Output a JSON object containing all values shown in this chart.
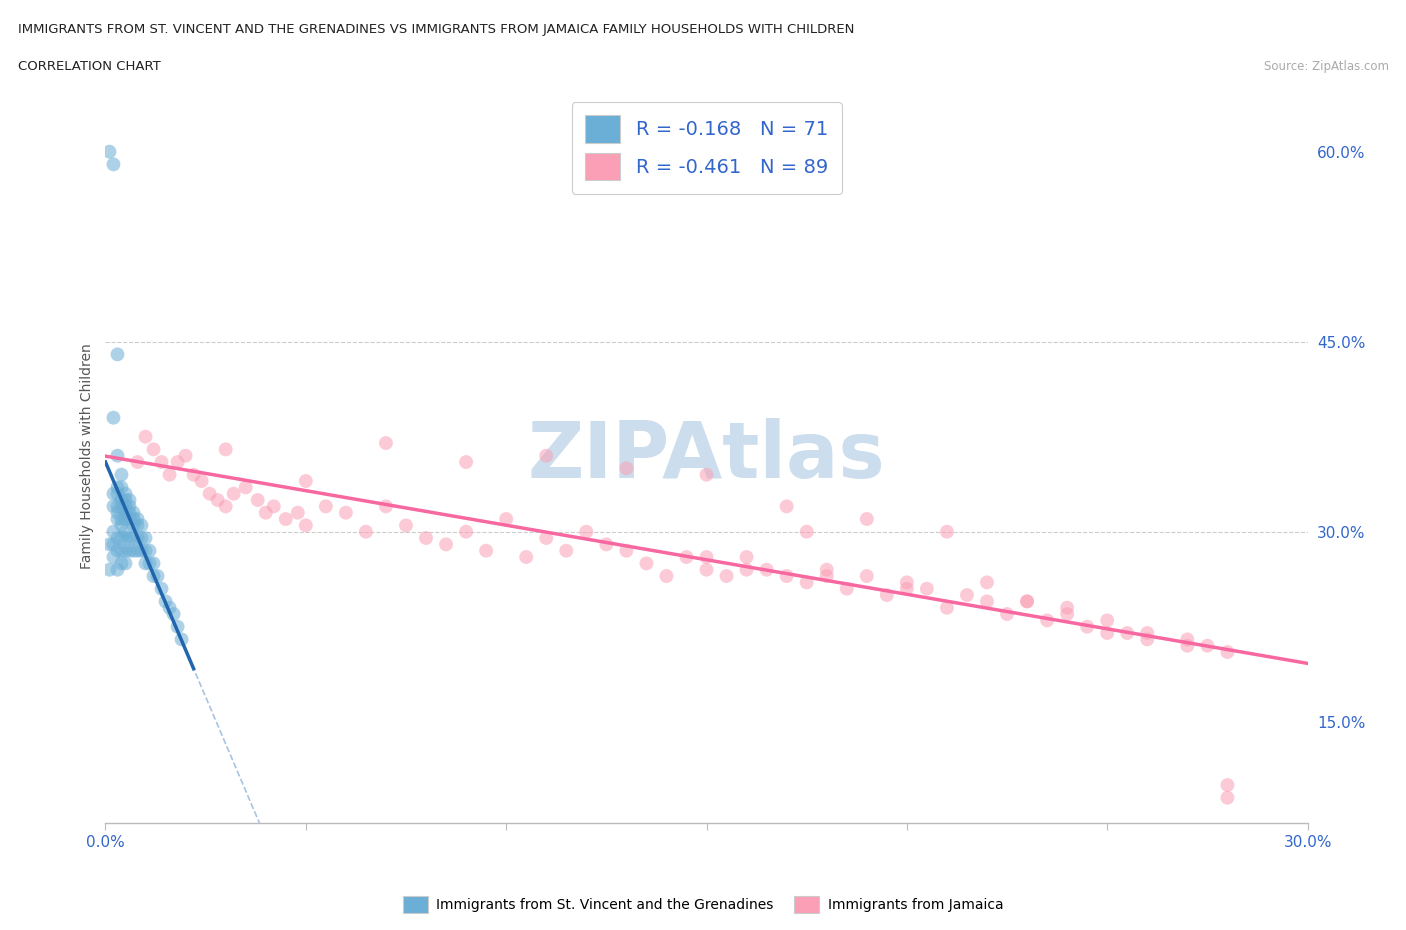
{
  "title_line1": "IMMIGRANTS FROM ST. VINCENT AND THE GRENADINES VS IMMIGRANTS FROM JAMAICA FAMILY HOUSEHOLDS WITH CHILDREN",
  "title_line2": "CORRELATION CHART",
  "source": "Source: ZipAtlas.com",
  "ylabel": "Family Households with Children",
  "xlim": [
    0.0,
    0.3
  ],
  "ylim": [
    0.07,
    0.65
  ],
  "x_ticks": [
    0.0,
    0.05,
    0.1,
    0.15,
    0.2,
    0.25,
    0.3
  ],
  "x_tick_labels": [
    "0.0%",
    "",
    "",
    "",
    "",
    "",
    "30.0%"
  ],
  "y_ticks_right": [
    0.15,
    0.3,
    0.45,
    0.6
  ],
  "y_tick_labels_right": [
    "15.0%",
    "30.0%",
    "45.0%",
    "60.0%"
  ],
  "hlines": [
    0.45,
    0.3
  ],
  "blue_color": "#6baed6",
  "pink_color": "#fa9fb5",
  "blue_line_color": "#2166ac",
  "pink_line_color": "#f768a1",
  "dashed_line_color": "#a8c4e0",
  "watermark_color": "#ccdded",
  "blue_scatter_x": [
    0.001,
    0.001,
    0.001,
    0.002,
    0.002,
    0.002,
    0.002,
    0.002,
    0.002,
    0.002,
    0.003,
    0.003,
    0.003,
    0.003,
    0.003,
    0.003,
    0.003,
    0.003,
    0.003,
    0.003,
    0.004,
    0.004,
    0.004,
    0.004,
    0.004,
    0.004,
    0.004,
    0.004,
    0.004,
    0.005,
    0.005,
    0.005,
    0.005,
    0.005,
    0.005,
    0.005,
    0.005,
    0.005,
    0.006,
    0.006,
    0.006,
    0.006,
    0.006,
    0.006,
    0.007,
    0.007,
    0.007,
    0.007,
    0.007,
    0.008,
    0.008,
    0.008,
    0.008,
    0.009,
    0.009,
    0.009,
    0.01,
    0.01,
    0.01,
    0.011,
    0.011,
    0.012,
    0.012,
    0.013,
    0.014,
    0.015,
    0.016,
    0.017,
    0.018,
    0.019
  ],
  "blue_scatter_y": [
    0.6,
    0.29,
    0.27,
    0.59,
    0.39,
    0.33,
    0.32,
    0.3,
    0.29,
    0.28,
    0.44,
    0.36,
    0.335,
    0.33,
    0.32,
    0.315,
    0.31,
    0.295,
    0.285,
    0.27,
    0.345,
    0.335,
    0.325,
    0.32,
    0.31,
    0.305,
    0.295,
    0.285,
    0.275,
    0.33,
    0.325,
    0.32,
    0.315,
    0.31,
    0.3,
    0.295,
    0.285,
    0.275,
    0.325,
    0.32,
    0.315,
    0.31,
    0.295,
    0.285,
    0.315,
    0.31,
    0.305,
    0.295,
    0.285,
    0.31,
    0.305,
    0.295,
    0.285,
    0.305,
    0.295,
    0.285,
    0.295,
    0.285,
    0.275,
    0.285,
    0.275,
    0.275,
    0.265,
    0.265,
    0.255,
    0.245,
    0.24,
    0.235,
    0.225,
    0.215
  ],
  "pink_scatter_x": [
    0.008,
    0.01,
    0.012,
    0.014,
    0.016,
    0.018,
    0.02,
    0.022,
    0.024,
    0.026,
    0.028,
    0.03,
    0.032,
    0.035,
    0.038,
    0.04,
    0.042,
    0.045,
    0.048,
    0.05,
    0.055,
    0.06,
    0.065,
    0.07,
    0.075,
    0.08,
    0.085,
    0.09,
    0.095,
    0.1,
    0.105,
    0.11,
    0.115,
    0.12,
    0.125,
    0.13,
    0.135,
    0.14,
    0.145,
    0.15,
    0.155,
    0.16,
    0.165,
    0.17,
    0.175,
    0.18,
    0.185,
    0.19,
    0.195,
    0.2,
    0.205,
    0.21,
    0.215,
    0.22,
    0.225,
    0.23,
    0.235,
    0.24,
    0.245,
    0.25,
    0.255,
    0.26,
    0.27,
    0.275,
    0.28,
    0.03,
    0.05,
    0.07,
    0.09,
    0.11,
    0.13,
    0.15,
    0.17,
    0.19,
    0.21,
    0.23,
    0.15,
    0.175,
    0.22,
    0.25,
    0.27,
    0.16,
    0.18,
    0.2,
    0.24,
    0.26,
    0.28,
    0.28
  ],
  "pink_scatter_y": [
    0.355,
    0.375,
    0.365,
    0.355,
    0.345,
    0.355,
    0.36,
    0.345,
    0.34,
    0.33,
    0.325,
    0.32,
    0.33,
    0.335,
    0.325,
    0.315,
    0.32,
    0.31,
    0.315,
    0.305,
    0.32,
    0.315,
    0.3,
    0.32,
    0.305,
    0.295,
    0.29,
    0.3,
    0.285,
    0.31,
    0.28,
    0.295,
    0.285,
    0.3,
    0.29,
    0.285,
    0.275,
    0.265,
    0.28,
    0.27,
    0.265,
    0.28,
    0.27,
    0.265,
    0.26,
    0.27,
    0.255,
    0.265,
    0.25,
    0.26,
    0.255,
    0.24,
    0.25,
    0.245,
    0.235,
    0.245,
    0.23,
    0.24,
    0.225,
    0.23,
    0.22,
    0.215,
    0.215,
    0.21,
    0.205,
    0.365,
    0.34,
    0.37,
    0.355,
    0.36,
    0.35,
    0.345,
    0.32,
    0.31,
    0.3,
    0.245,
    0.28,
    0.3,
    0.26,
    0.22,
    0.21,
    0.27,
    0.265,
    0.255,
    0.235,
    0.22,
    0.1,
    0.09
  ]
}
